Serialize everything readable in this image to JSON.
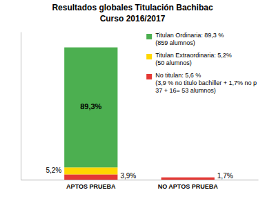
{
  "chart_data": {
    "type": "bar",
    "title": "Resultados globales Titulación Bachibac",
    "subtitle": "Curso 2016/2017",
    "categories": [
      "APTOS PRUEBA",
      "NO APTOS PRUEBA"
    ],
    "stacked": true,
    "data_labels": true,
    "legend": "upper right",
    "tick_labels": "x",
    "ylim": [
      0,
      110
    ],
    "series": [
      {
        "name": "Titulan Ordinaria: 89,3 %\n(859 alumnos)",
        "color": "#4CAF50",
        "values": [
          89.3,
          0.0
        ],
        "value_labels": [
          "89,3%",
          null
        ]
      },
      {
        "name": "Titulan Extraordinaria: 5,2%\n(50 alumnos)",
        "color": "#FFD700",
        "values": [
          5.2,
          0.0
        ],
        "value_labels": [
          "5,2%",
          null
        ]
      },
      {
        "name": "No titulan: 5,6 %\n(3,9 % no titulo bachiller + 1,7% no p\n37 + 16= 53 alumnos)",
        "color": "#E53935",
        "values": [
          3.9,
          1.7
        ],
        "value_labels": [
          "3,9%",
          "1,7%"
        ]
      }
    ]
  }
}
